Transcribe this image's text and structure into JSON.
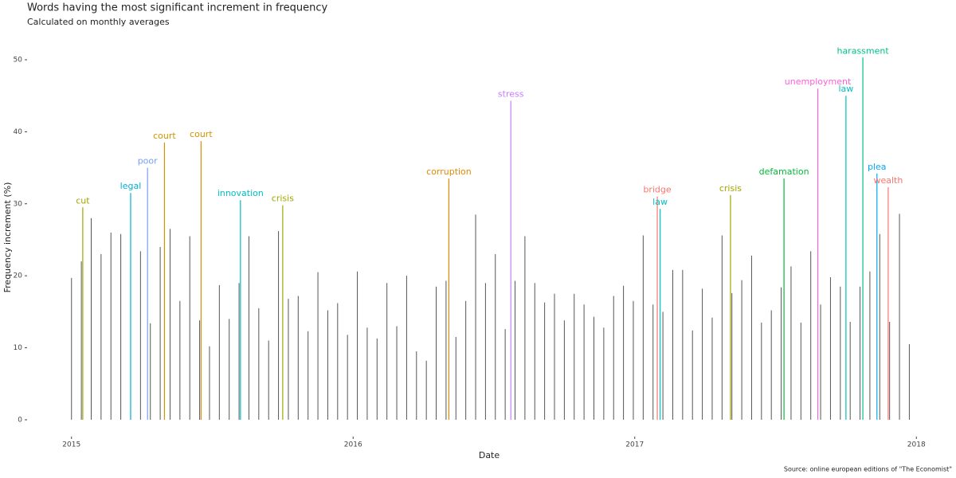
{
  "chart_data": {
    "type": "spike",
    "title": "Words having the most significant increment in frequency",
    "subtitle": "Calculated on monthly averages",
    "x_label": "Date",
    "y_label": "Frequency increment (%)",
    "source": "Source: online european editions of \"The Economist\"",
    "xlim": [
      2014.93,
      2018.07
    ],
    "ylim": [
      -2,
      52.5
    ],
    "xticks": [
      2015,
      2016,
      2017,
      2018
    ],
    "yticks": [
      0,
      10,
      20,
      30,
      40,
      50
    ],
    "background": {
      "color": "#555555",
      "x": [
        2015,
        2015.035,
        2015.07,
        2015.105,
        2015.14,
        2015.175,
        2015.21,
        2015.245,
        2015.28,
        2015.315,
        2015.35,
        2015.385,
        2015.42,
        2015.455,
        2015.49,
        2015.525,
        2015.56,
        2015.595,
        2015.63,
        2015.665,
        2015.7,
        2015.735,
        2015.77,
        2015.805,
        2015.84,
        2015.875,
        2015.91,
        2015.945,
        2015.98,
        2016.015,
        2016.05,
        2016.085,
        2016.12,
        2016.155,
        2016.19,
        2016.225,
        2016.26,
        2016.295,
        2016.33,
        2016.365,
        2016.4,
        2016.435,
        2016.47,
        2016.505,
        2016.54,
        2016.575,
        2016.61,
        2016.645,
        2016.68,
        2016.715,
        2016.75,
        2016.785,
        2016.82,
        2016.855,
        2016.89,
        2016.925,
        2016.96,
        2016.995,
        2017.03,
        2017.065,
        2017.1,
        2017.135,
        2017.17,
        2017.205,
        2017.24,
        2017.275,
        2017.31,
        2017.345,
        2017.38,
        2017.415,
        2017.45,
        2017.485,
        2017.52,
        2017.555,
        2017.59,
        2017.625,
        2017.66,
        2017.695,
        2017.73,
        2017.765,
        2017.8,
        2017.835,
        2017.87,
        2017.905,
        2017.94,
        2017.975
      ],
      "values": [
        19.7,
        22,
        28,
        23,
        26,
        25.8,
        21.2,
        23.4,
        13.4,
        24,
        26.5,
        16.5,
        25.5,
        13.8,
        10.2,
        18.7,
        14,
        19,
        25.5,
        15.5,
        11,
        26.2,
        16.8,
        17.2,
        12.3,
        20.5,
        15.2,
        16.2,
        11.8,
        20.6,
        12.8,
        11.3,
        19,
        13,
        20,
        9.5,
        8.2,
        18.5,
        19.3,
        11.5,
        16.5,
        28.5,
        19,
        23,
        12.6,
        19.3,
        25.5,
        19,
        16.3,
        17.5,
        13.8,
        17.5,
        16,
        14.3,
        12.8,
        17.2,
        18.6,
        16.5,
        25.6,
        16,
        15,
        20.8,
        20.8,
        12.4,
        18.2,
        14.2,
        25.6,
        17.6,
        19.4,
        22.8,
        13.5,
        15.2,
        18.4,
        21.3,
        13.5,
        23.4,
        16,
        19.8,
        18.5,
        13.6,
        18.5,
        20.6,
        25.8,
        13.6,
        28.6,
        10.5
      ]
    },
    "highlights": {
      "labels": [
        "cut",
        "legal",
        "poor",
        "court",
        "court",
        "innovation",
        "crisis",
        "corruption",
        "stress",
        "bridge",
        "law",
        "crisis",
        "defamation",
        "unemployment",
        "law",
        "harassment",
        "plea",
        "wealth"
      ],
      "x": [
        2015.04,
        2015.21,
        2015.27,
        2015.33,
        2015.46,
        2015.6,
        2015.75,
        2016.34,
        2016.56,
        2017.08,
        2017.09,
        2017.34,
        2017.53,
        2017.65,
        2017.75,
        2017.81,
        2017.86,
        2017.9
      ],
      "values": [
        29.5,
        31.5,
        35,
        38.5,
        38.7,
        30.5,
        29.8,
        33.5,
        44.3,
        31,
        29.3,
        31.2,
        33.5,
        46,
        45,
        50.3,
        34.2,
        32.3
      ],
      "colors": [
        "#a3a500",
        "#00b0d8",
        "#7b9bf5",
        "#cf9400",
        "#cf9400",
        "#00bfc4",
        "#a3a500",
        "#e58700",
        "#c77cff",
        "#f8766d",
        "#00bfc4",
        "#a3a500",
        "#00ba38",
        "#fb61d7",
        "#00bfc4",
        "#00c08b",
        "#00a9ff",
        "#f8766d"
      ]
    }
  }
}
